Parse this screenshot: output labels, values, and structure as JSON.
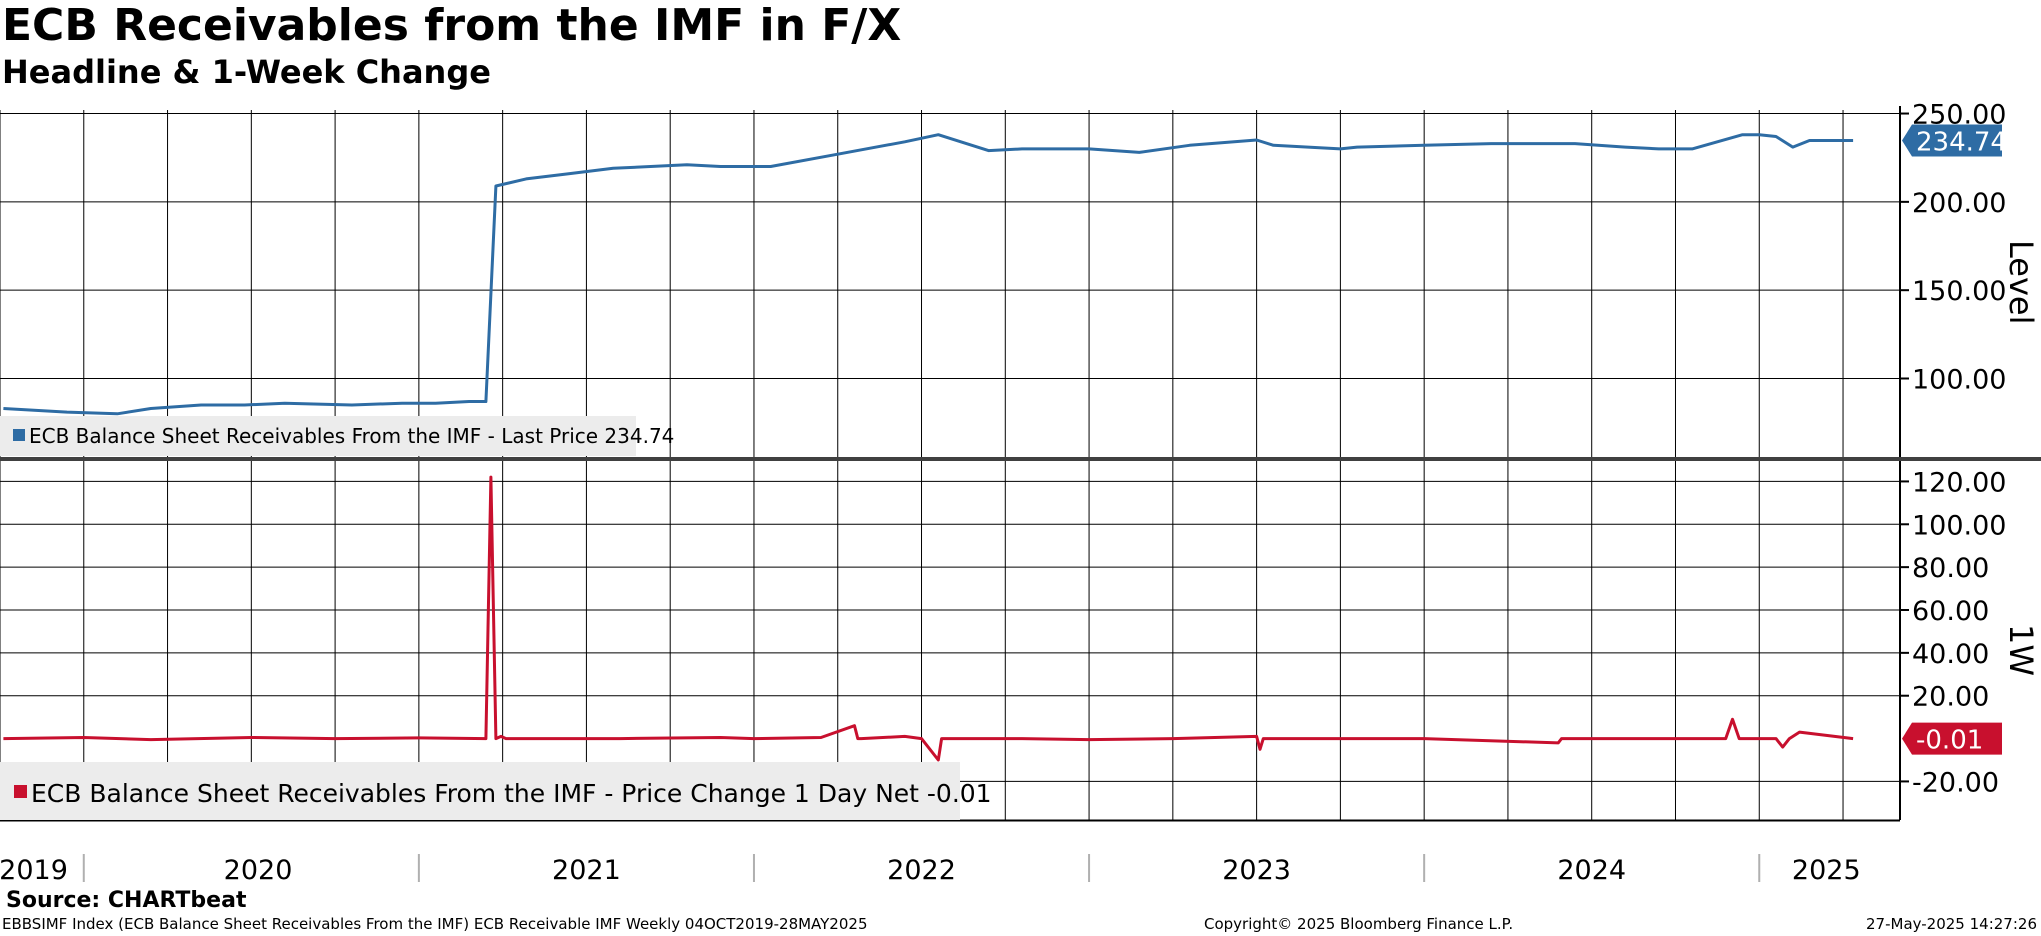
{
  "header": {
    "title": "ECB Receivables from the IMF in F/X",
    "subtitle": "Headline & 1-Week Change"
  },
  "footer": {
    "source": "Source: CHARTbeat",
    "ticker_info": "EBBSIMF Index (ECB Balance Sheet Receivables From the IMF) ECB Receivable IMF  Weekly 04OCT2019-28MAY2025",
    "copyright": "Copyright© 2025 Bloomberg Finance L.P.",
    "timestamp": "27-May-2025 14:27:26"
  },
  "colors": {
    "level_line": "#2e6ca4",
    "change_line": "#c8102e",
    "grid": "#000000",
    "legend_bg": "#ececec",
    "divider": "#404040"
  },
  "chart_data": [
    {
      "type": "line",
      "panel": "top",
      "ylabel": "Level",
      "ylim": [
        55,
        252
      ],
      "yticks": [
        "250.00",
        "200.00",
        "150.00",
        "100.00"
      ],
      "ytick_values": [
        250,
        200,
        150,
        100
      ],
      "legend": "ECB Balance Sheet Receivables From the IMF - Last Price 234.74",
      "last_value_label": "234.74",
      "last_value": 234.74,
      "x": [
        2019.76,
        2019.95,
        2020.1,
        2020.2,
        2020.35,
        2020.48,
        2020.6,
        2020.8,
        2020.95,
        2021.05,
        2021.15,
        2021.2,
        2021.23,
        2021.32,
        2021.45,
        2021.58,
        2021.8,
        2021.9,
        2022.05,
        2022.25,
        2022.45,
        2022.55,
        2022.7,
        2022.8,
        2022.85,
        2023.0,
        2023.15,
        2023.3,
        2023.5,
        2023.55,
        2023.75,
        2023.8,
        2024.0,
        2024.2,
        2024.45,
        2024.6,
        2024.7,
        2024.8,
        2024.95,
        2025.0,
        2025.05,
        2025.1,
        2025.15,
        2025.28
      ],
      "values": [
        83,
        81,
        80,
        83,
        85,
        85,
        86,
        85,
        86,
        86,
        87,
        87,
        209,
        213,
        216,
        219,
        221,
        220,
        220,
        227,
        234,
        238,
        229,
        230,
        230,
        230,
        228,
        232,
        235,
        232,
        230,
        231,
        232,
        233,
        233,
        231,
        230,
        230,
        238,
        238,
        237,
        231,
        234.74,
        234.74
      ]
    },
    {
      "type": "line",
      "panel": "bottom",
      "ylabel": "1W",
      "ylim": [
        -38,
        130
      ],
      "yticks": [
        "120.00",
        "100.00",
        "80.00",
        "60.00",
        "40.00",
        "20.00",
        "-20.00"
      ],
      "ytick_values": [
        120,
        100,
        80,
        60,
        40,
        20,
        -20
      ],
      "legend": "ECB Balance Sheet Receivables From the IMF - Price Change 1 Day Net -0.01",
      "last_value_label": "-0.01",
      "last_value": -0.01,
      "x": [
        2019.76,
        2020.0,
        2020.2,
        2020.5,
        2020.75,
        2021.0,
        2021.2,
        2021.215,
        2021.23,
        2021.245,
        2021.26,
        2021.6,
        2021.9,
        2022.0,
        2022.2,
        2022.3,
        2022.31,
        2022.32,
        2022.45,
        2022.5,
        2022.55,
        2022.56,
        2022.57,
        2022.8,
        2023.0,
        2023.25,
        2023.5,
        2023.51,
        2023.52,
        2023.8,
        2024.0,
        2024.4,
        2024.41,
        2024.42,
        2024.9,
        2024.92,
        2024.94,
        2025.0,
        2025.05,
        2025.07,
        2025.09,
        2025.12,
        2025.28
      ],
      "values": [
        0,
        0.5,
        -0.5,
        0.5,
        0,
        0.3,
        0,
        122,
        0,
        1,
        0,
        0,
        0.5,
        0,
        0.5,
        6,
        0,
        0,
        1,
        0,
        -10,
        0,
        0,
        0,
        -0.5,
        0,
        1,
        -5,
        0,
        0,
        0,
        -2,
        0,
        0,
        0,
        9,
        0,
        0,
        0,
        -4,
        0,
        3,
        -0.01
      ]
    },
    {
      "type": "axis",
      "panel": "x",
      "xlim": [
        2019.75,
        2025.42
      ],
      "year_labels": [
        "2019",
        "2020",
        "2021",
        "2022",
        "2023",
        "2024",
        "2025"
      ],
      "year_label_positions": [
        2019.85,
        2020.52,
        2021.5,
        2022.5,
        2023.5,
        2024.5,
        2025.2
      ],
      "year_boundaries": [
        2020,
        2021,
        2022,
        2023,
        2024,
        2025
      ],
      "grid_x": [
        2019.75,
        2020,
        2020.25,
        2020.5,
        2020.75,
        2021,
        2021.25,
        2021.5,
        2021.75,
        2022,
        2022.25,
        2022.5,
        2022.75,
        2023,
        2023.25,
        2023.5,
        2023.75,
        2024,
        2024.25,
        2024.5,
        2024.75,
        2025,
        2025.25
      ]
    }
  ]
}
